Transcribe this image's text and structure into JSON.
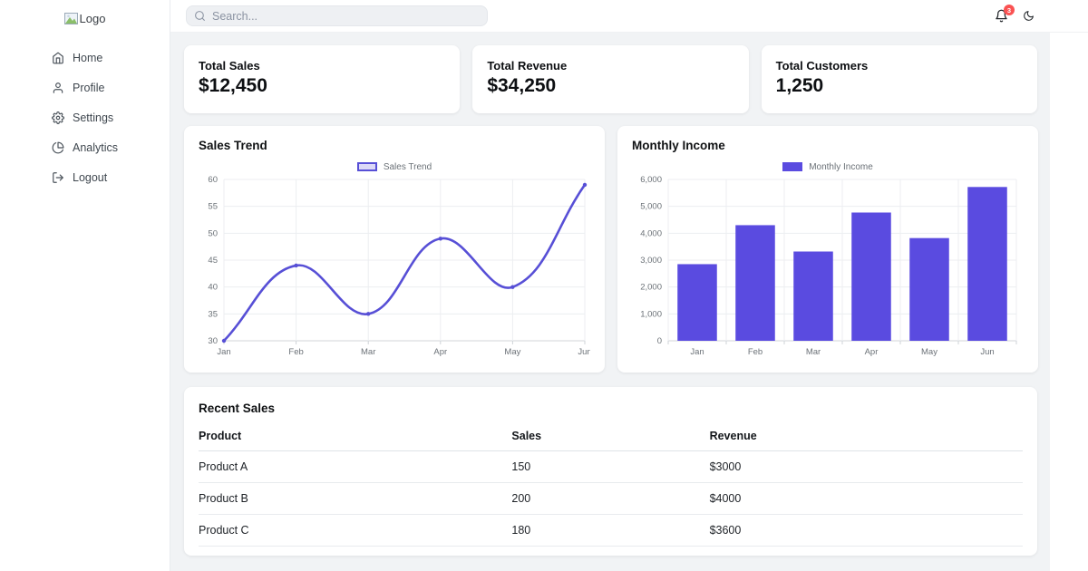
{
  "sidebar": {
    "logo_alt": "Logo",
    "items": [
      {
        "label": "Home",
        "icon": "home-icon"
      },
      {
        "label": "Profile",
        "icon": "user-icon"
      },
      {
        "label": "Settings",
        "icon": "gear-icon"
      },
      {
        "label": "Analytics",
        "icon": "pie-chart-icon"
      },
      {
        "label": "Logout",
        "icon": "logout-icon"
      }
    ]
  },
  "header": {
    "search_placeholder": "Search...",
    "notification_count": "3"
  },
  "stats": [
    {
      "label": "Total Sales",
      "value": "$12,450"
    },
    {
      "label": "Total Revenue",
      "value": "$34,250"
    },
    {
      "label": "Total Customers",
      "value": "1,250"
    }
  ],
  "chart_data": [
    {
      "type": "line",
      "title": "Sales Trend",
      "legend": "Sales Trend",
      "categories": [
        "Jan",
        "Feb",
        "Mar",
        "Apr",
        "May",
        "Jun"
      ],
      "values": [
        30,
        44,
        35,
        49,
        40,
        59
      ],
      "ylim": [
        30,
        60
      ],
      "ytick_step": 5,
      "line_color": "#574fd6",
      "legend_fill": "#dcd9f7",
      "fill": false,
      "grid": true,
      "legend_position": "top"
    },
    {
      "type": "bar",
      "title": "Monthly Income",
      "legend": "Monthly Income",
      "categories": [
        "Jan",
        "Feb",
        "Mar",
        "Apr",
        "May",
        "Jun"
      ],
      "values": [
        2850,
        4300,
        3320,
        4770,
        3820,
        5720
      ],
      "ylim": [
        0,
        6000
      ],
      "ytick_step": 1000,
      "bar_color": "#5a4be0",
      "grid": true,
      "legend_position": "top"
    }
  ],
  "table": {
    "title": "Recent Sales",
    "columns": [
      "Product",
      "Sales",
      "Revenue"
    ],
    "rows": [
      [
        "Product A",
        "150",
        "$3000"
      ],
      [
        "Product B",
        "200",
        "$4000"
      ],
      [
        "Product C",
        "180",
        "$3600"
      ]
    ]
  }
}
